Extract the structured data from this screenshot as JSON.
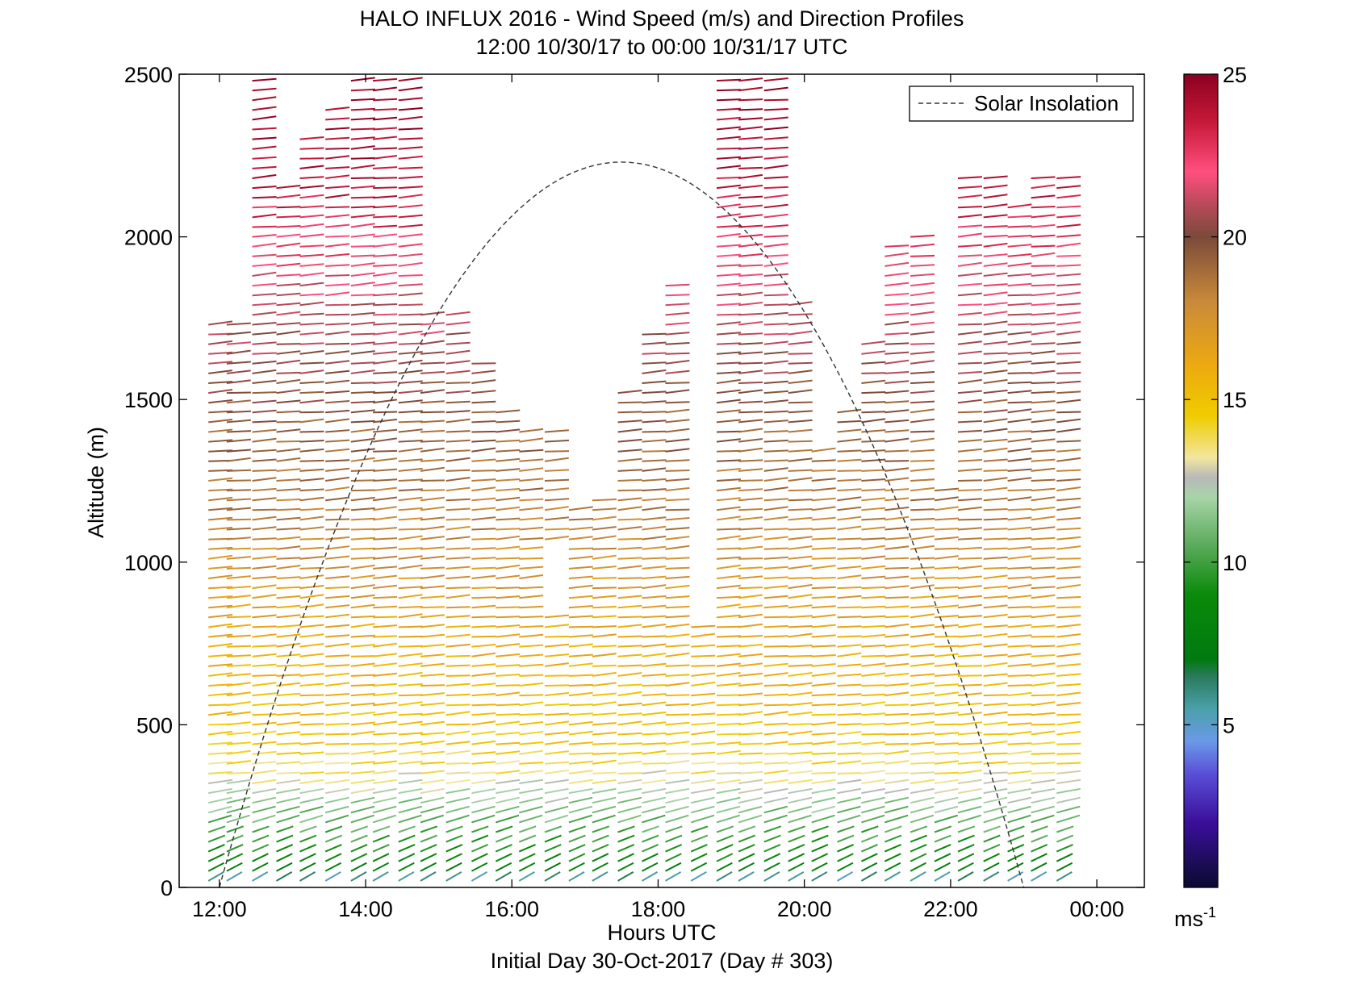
{
  "chart_data": {
    "type": "wind-barb-profile",
    "title": "HALO INFLUX 2016 - Wind Speed (m/s) and Direction Profiles",
    "subtitle": "12:00 10/30/17 to 00:00 10/31/17  UTC",
    "xlabel": "Hours UTC",
    "xlabel_sub": "Initial Day 30-Oct-2017 (Day # 303)",
    "ylabel": "Altitude (m)",
    "xlim": [
      11.45,
      24.65
    ],
    "ylim": [
      0,
      2500
    ],
    "x_ticks": [
      12,
      14,
      16,
      18,
      20,
      22,
      24
    ],
    "x_tick_labels": [
      "12:00",
      "14:00",
      "16:00",
      "18:00",
      "20:00",
      "22:00",
      "00:00"
    ],
    "y_ticks": [
      0,
      500,
      1000,
      1500,
      2000,
      2500
    ],
    "y_tick_labels": [
      "0",
      "500",
      "1000",
      "1500",
      "2000",
      "2500"
    ],
    "legend": {
      "label": "Solar Insolation",
      "placement": "top-right",
      "style": "dashed"
    },
    "solar_insolation": {
      "start_hour": 12.0,
      "end_hour": 23.0,
      "peak_hour": 17.5,
      "peak_altitude": 2230
    },
    "colorbar": {
      "min": 0,
      "max": 25,
      "ticks": [
        5,
        10,
        15,
        20,
        25
      ],
      "tick_labels": [
        "5",
        "10",
        "15",
        "20",
        "25"
      ],
      "unit_label": "ms",
      "unit_exponent": "-1",
      "stops": [
        {
          "v": 0,
          "c": "#0a0a30"
        },
        {
          "v": 2,
          "c": "#3a0f9a"
        },
        {
          "v": 3.5,
          "c": "#5a4fd8"
        },
        {
          "v": 4.5,
          "c": "#6a9ae8"
        },
        {
          "v": 5.5,
          "c": "#4aa0a8"
        },
        {
          "v": 6.5,
          "c": "#2a7a5a"
        },
        {
          "v": 7,
          "c": "#007a10"
        },
        {
          "v": 9,
          "c": "#0a8a0a"
        },
        {
          "v": 10.5,
          "c": "#5aaa5a"
        },
        {
          "v": 12,
          "c": "#a8d4a8"
        },
        {
          "v": 12.6,
          "c": "#b8b8b8"
        },
        {
          "v": 13.2,
          "c": "#f2e6a0"
        },
        {
          "v": 14.5,
          "c": "#efcc00"
        },
        {
          "v": 16,
          "c": "#eeaa10"
        },
        {
          "v": 18,
          "c": "#c98a3a"
        },
        {
          "v": 20,
          "c": "#7a4a3a"
        },
        {
          "v": 21,
          "c": "#b84a5a"
        },
        {
          "v": 22,
          "c": "#ff4f7f"
        },
        {
          "v": 23.5,
          "c": "#c81a3a"
        },
        {
          "v": 25,
          "c": "#8c0020"
        }
      ]
    },
    "profiles": [
      {
        "t": 11.85,
        "ztop": 1740
      },
      {
        "t": 12.1,
        "ztop": 1740
      },
      {
        "t": 12.45,
        "ztop": 2500
      },
      {
        "t": 12.78,
        "ztop": 2170
      },
      {
        "t": 13.1,
        "ztop": 2320
      },
      {
        "t": 13.45,
        "ztop": 2400
      },
      {
        "t": 13.8,
        "ztop": 2500
      },
      {
        "t": 14.1,
        "ztop": 2500
      },
      {
        "t": 14.45,
        "ztop": 2500
      },
      {
        "t": 14.75,
        "ztop": 1780
      },
      {
        "t": 15.1,
        "ztop": 1760
      },
      {
        "t": 15.45,
        "ztop": 1620
      },
      {
        "t": 15.78,
        "ztop": 1460
      },
      {
        "t": 16.1,
        "ztop": 1400
      },
      {
        "t": 16.45,
        "ztop": 1410
      },
      {
        "t": 16.78,
        "ztop": 1160
      },
      {
        "t": 17.1,
        "ztop": 1210
      },
      {
        "t": 17.45,
        "ztop": 1540
      },
      {
        "t": 17.78,
        "ztop": 1720
      },
      {
        "t": 18.1,
        "ztop": 1870
      },
      {
        "t": 18.45,
        "ztop": 810
      },
      {
        "t": 18.8,
        "ztop": 2500
      },
      {
        "t": 19.1,
        "ztop": 2500
      },
      {
        "t": 19.45,
        "ztop": 2500
      },
      {
        "t": 19.78,
        "ztop": 1800
      },
      {
        "t": 20.1,
        "ztop": 1340
      },
      {
        "t": 20.45,
        "ztop": 1470
      },
      {
        "t": 20.78,
        "ztop": 1680
      },
      {
        "t": 21.1,
        "ztop": 1980
      },
      {
        "t": 21.45,
        "ztop": 2010
      },
      {
        "t": 21.78,
        "ztop": 1220
      },
      {
        "t": 22.1,
        "ztop": 2190
      },
      {
        "t": 22.45,
        "ztop": 2190
      },
      {
        "t": 22.78,
        "ztop": 2100
      },
      {
        "t": 23.1,
        "ztop": 2190
      },
      {
        "t": 23.45,
        "ztop": 2190
      }
    ],
    "speed_profile_by_altitude": [
      {
        "z": 0,
        "speed": 4.5
      },
      {
        "z": 60,
        "speed": 8.5
      },
      {
        "z": 250,
        "speed": 11.5
      },
      {
        "z": 330,
        "speed": 13.2
      },
      {
        "z": 450,
        "speed": 14.8
      },
      {
        "z": 800,
        "speed": 16.2
      },
      {
        "z": 1100,
        "speed": 18.2
      },
      {
        "z": 1450,
        "speed": 19.6
      },
      {
        "z": 1700,
        "speed": 20.8
      },
      {
        "z": 1950,
        "speed": 22.3
      },
      {
        "z": 2150,
        "speed": 23.8
      },
      {
        "z": 2500,
        "speed": 24.8
      }
    ],
    "notes_gaps": [
      {
        "t_from": 16.3,
        "t_to": 16.6,
        "z_from": 850,
        "z_to": 1060
      }
    ]
  }
}
